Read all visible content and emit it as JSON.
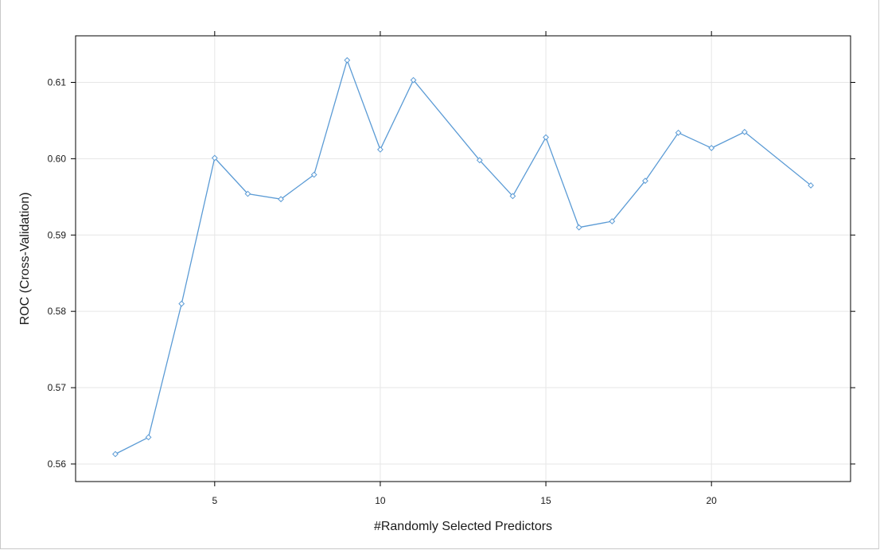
{
  "chart_data": {
    "type": "line",
    "title": "",
    "xlabel": "#Randomly Selected Predictors",
    "ylabel": "ROC (Cross-Validation)",
    "xlim": [
      0.8,
      24.2
    ],
    "ylim": [
      0.5577,
      0.6161
    ],
    "xticks": [
      5,
      10,
      15,
      20
    ],
    "xtick_labels": [
      "5",
      "10",
      "15",
      "20"
    ],
    "yticks": [
      0.56,
      0.57,
      0.58,
      0.59,
      0.6,
      0.61
    ],
    "ytick_labels": [
      "0.56",
      "0.57",
      "0.58",
      "0.59",
      "0.60",
      "0.61"
    ],
    "grid": true,
    "colors": {
      "line": "#5b9bd5",
      "marker": "#5b9bd5",
      "grid": "#e6e6e6",
      "axis": "#000000"
    },
    "marker": "diamond",
    "series": [
      {
        "x": [
          2,
          3,
          4,
          5,
          6,
          7,
          8,
          9,
          10,
          11,
          13,
          14,
          15,
          16,
          17,
          18,
          19,
          20,
          21,
          23
        ],
        "y": [
          0.5613,
          0.5635,
          0.581,
          0.6001,
          0.5954,
          0.5947,
          0.5979,
          0.6129,
          0.6012,
          0.6103,
          0.5998,
          0.5951,
          0.6028,
          0.591,
          0.5918,
          0.5971,
          0.6034,
          0.6014,
          0.6035,
          0.5965
        ]
      }
    ]
  }
}
